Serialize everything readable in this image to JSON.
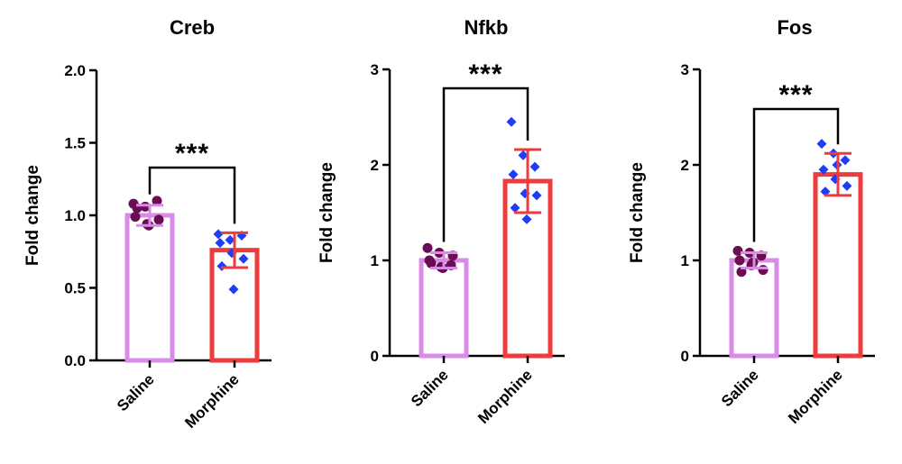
{
  "chart_data": [
    {
      "type": "bar",
      "title": "Creb",
      "ylabel": "Fold change",
      "categories": [
        "Saline",
        "Morphine"
      ],
      "ylim": [
        0,
        2.0
      ],
      "yticks": [
        "0.0",
        "0.5",
        "1.0",
        "1.5",
        "2.0"
      ],
      "significance": "***",
      "series": [
        {
          "values": [
            1.0,
            0.76
          ],
          "error": [
            0.07,
            0.12
          ],
          "points": [
            [
              1.08,
              1.06,
              1.1,
              0.99,
              0.94,
              0.97,
              1.05,
              0.93
            ],
            [
              0.87,
              0.83,
              0.86,
              0.81,
              0.74,
              0.7,
              0.65,
              0.49
            ]
          ]
        }
      ],
      "colors": {
        "saline": "#d98be8",
        "morphine": "#ef3b3b",
        "saline_points": "#6b0d52",
        "morphine_points": "#1f3df5",
        "bracket": "#000000"
      }
    },
    {
      "type": "bar",
      "title": "Nfkb",
      "ylabel": "Fold change",
      "categories": [
        "Saline",
        "Morphine"
      ],
      "ylim": [
        0,
        3
      ],
      "yticks": [
        "0",
        "1",
        "2",
        "3"
      ],
      "significance": "***",
      "series": [
        {
          "values": [
            1.0,
            1.83
          ],
          "error": [
            0.08,
            0.33
          ],
          "points": [
            [
              1.13,
              1.08,
              0.95,
              1.0,
              0.93,
              1.05,
              0.97,
              0.92
            ],
            [
              2.45,
              2.1,
              1.98,
              1.9,
              1.7,
              1.68,
              1.55,
              1.43
            ]
          ]
        }
      ],
      "colors": {
        "saline": "#d98be8",
        "morphine": "#ef3b3b",
        "saline_points": "#6b0d52",
        "morphine_points": "#1f3df5",
        "bracket": "#000000"
      }
    },
    {
      "type": "bar",
      "title": "Fos",
      "ylabel": "Fold change",
      "categories": [
        "Saline",
        "Morphine"
      ],
      "ylim": [
        0,
        3
      ],
      "yticks": [
        "0",
        "1",
        "2",
        "3"
      ],
      "significance": "***",
      "series": [
        {
          "values": [
            1.0,
            1.9
          ],
          "error": [
            0.08,
            0.22
          ],
          "points": [
            [
              1.1,
              1.08,
              1.05,
              1.0,
              0.95,
              0.9,
              0.88,
              0.98
            ],
            [
              2.22,
              2.12,
              2.05,
              1.95,
              1.85,
              1.78,
              1.72,
              2.0
            ]
          ]
        }
      ],
      "colors": {
        "saline": "#d98be8",
        "morphine": "#ef3b3b",
        "saline_points": "#6b0d52",
        "morphine_points": "#1f3df5",
        "bracket": "#000000"
      }
    }
  ]
}
